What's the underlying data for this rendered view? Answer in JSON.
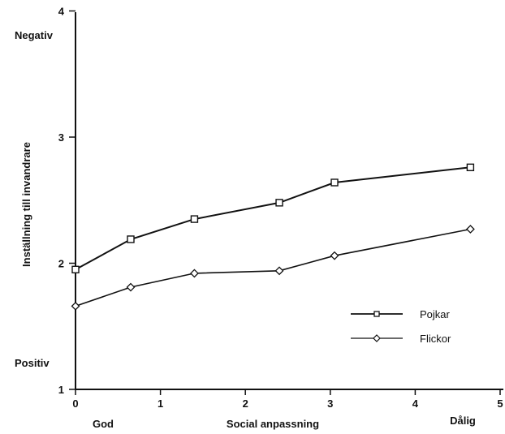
{
  "chart_data": {
    "type": "line",
    "xlabel": "Social anpassning",
    "ylabel": "Inställning till invandrare",
    "xlim": [
      0,
      5
    ],
    "ylim": [
      1,
      4
    ],
    "x_ticks": [
      "0",
      "1",
      "2",
      "3",
      "4",
      "5"
    ],
    "y_ticks": [
      "1",
      "2",
      "3",
      "4"
    ],
    "x_annotations": {
      "low": "God",
      "high": "Dålig"
    },
    "y_annotations": {
      "low": "Positiv",
      "high": "Negativ"
    },
    "grid": false,
    "legend_position": "right",
    "series": [
      {
        "name": "Pojkar",
        "marker": "square",
        "color": "#111111",
        "x": [
          0,
          0.65,
          1.4,
          2.4,
          3.05,
          4.65
        ],
        "y": [
          1.95,
          2.19,
          2.35,
          2.48,
          2.64,
          2.76
        ]
      },
      {
        "name": "Flickor",
        "marker": "diamond",
        "color": "#111111",
        "x": [
          0,
          0.65,
          1.4,
          2.4,
          3.05,
          4.65
        ],
        "y": [
          1.66,
          1.81,
          1.92,
          1.94,
          2.06,
          2.27
        ]
      }
    ]
  }
}
